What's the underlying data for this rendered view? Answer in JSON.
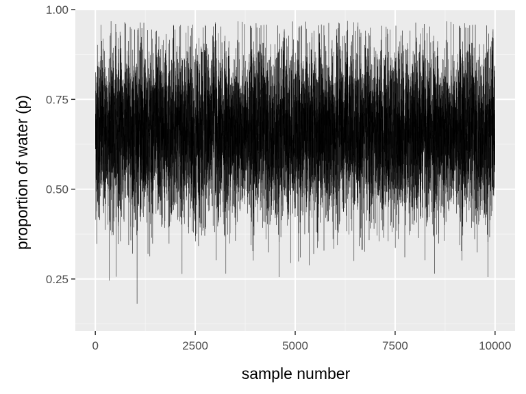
{
  "chart_data": {
    "type": "line",
    "title": "",
    "xlabel": "sample number",
    "ylabel": "proportion of water (p)",
    "xlim": [
      -500,
      10500
    ],
    "ylim": [
      0.105,
      1.0
    ],
    "x_ticks": [
      0,
      2500,
      5000,
      7500,
      10000
    ],
    "x_tick_labels": [
      "0",
      "2500",
      "5000",
      "7500",
      "10000"
    ],
    "y_ticks": [
      0.25,
      0.5,
      0.75,
      1.0
    ],
    "y_tick_labels": [
      "0.25",
      "0.50",
      "0.75",
      "1.00"
    ],
    "grid": true,
    "legend": "none",
    "series": [
      {
        "n_samples": 10000,
        "x_range": [
          1,
          10000
        ],
        "typical_range": [
          0.4,
          0.9
        ],
        "center": 0.66,
        "min": 0.15,
        "max": 0.97,
        "color": "#000000"
      }
    ],
    "colors": {
      "panel_background": "#ebebeb",
      "grid_major": "#ffffff",
      "grid_minor": "#f5f5f5",
      "trace": "#000000",
      "tick_text": "#4d4d4d"
    }
  }
}
